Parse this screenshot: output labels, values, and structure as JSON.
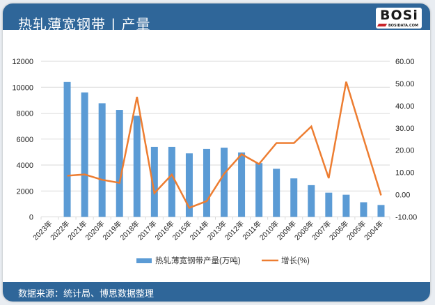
{
  "header": {
    "title": "热轧薄宽钢带 | 产量",
    "logo_text": "BOSi",
    "logo_sub": "BOSIDATA.COM"
  },
  "footer": {
    "source": "数据来源：统计局、博思数据整理"
  },
  "legend": {
    "bar_label": "热轧薄宽钢带产量(万吨)",
    "line_label": "增长(%)"
  },
  "colors": {
    "header_bg": "#2f6699",
    "bar": "#5b9bd5",
    "line": "#ed7d31",
    "grid": "#d9d9d9"
  },
  "chart_data": {
    "type": "bar+line",
    "title": "热轧薄宽钢带 | 产量",
    "categories": [
      "2023年",
      "2022年",
      "2021年",
      "2020年",
      "2019年",
      "2018年",
      "2017年",
      "2016年",
      "2015年",
      "2014年",
      "2013年",
      "2012年",
      "2011年",
      "2010年",
      "2009年",
      "2008年",
      "2007年",
      "2006年",
      "2005年",
      "2004年"
    ],
    "series": [
      {
        "name": "热轧薄宽钢带产量(万吨)",
        "type": "bar",
        "axis": "left",
        "values": [
          null,
          10400,
          9600,
          8760,
          8240,
          7800,
          5400,
          5400,
          4900,
          5240,
          5340,
          4970,
          4150,
          3710,
          2970,
          2450,
          1870,
          1710,
          1130,
          920
        ]
      },
      {
        "name": "增长(%)",
        "type": "line",
        "axis": "right",
        "values": [
          null,
          8.5,
          9.1,
          6.7,
          5.3,
          44.0,
          0.7,
          9.0,
          -5.9,
          -2.9,
          9.4,
          18.2,
          13.8,
          23.2,
          23.2,
          30.7,
          7.4,
          50.8,
          25.2,
          -0.3
        ]
      }
    ],
    "left_axis": {
      "ticks": [
        "0",
        "2000",
        "4000",
        "6000",
        "8000",
        "10000",
        "12000"
      ],
      "min": 0,
      "max": 12000
    },
    "right_axis": {
      "ticks": [
        "-10.00",
        "0.00",
        "10.00",
        "20.00",
        "30.00",
        "40.00",
        "50.00",
        "60.00"
      ],
      "min": -10,
      "max": 60
    },
    "xlabel": "",
    "ylabel": "",
    "grid": true,
    "legend_position": "bottom"
  }
}
